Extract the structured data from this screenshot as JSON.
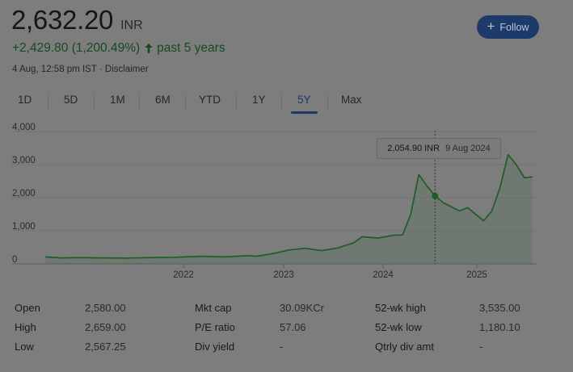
{
  "header": {
    "price": "2,632.20",
    "currency": "INR",
    "change": "+2,429.80 (1,200.49%)",
    "period": "past 5 years",
    "timestamp": "4 Aug, 12:58 pm IST",
    "separator": "·",
    "disclaimer": "Disclaimer",
    "follow_label": "Follow"
  },
  "tabs": [
    {
      "label": "1D"
    },
    {
      "label": "5D"
    },
    {
      "label": "1M"
    },
    {
      "label": "6M"
    },
    {
      "label": "YTD"
    },
    {
      "label": "1Y"
    },
    {
      "label": "5Y",
      "active": true
    },
    {
      "label": "Max"
    }
  ],
  "tooltip": {
    "value": "2,054.90 INR",
    "date": "9 Aug 2024"
  },
  "chart_data": {
    "type": "area",
    "x_ticks": [
      "2022",
      "2023",
      "2024",
      "2025"
    ],
    "y_ticks": [
      "0",
      "1,000",
      "2,000",
      "3,000",
      "4,000"
    ],
    "ylim": [
      0,
      4000
    ],
    "line_color": "#1b5e27",
    "series": [
      {
        "points": [
          [
            "2020-08",
            210
          ],
          [
            "2020-10",
            180
          ],
          [
            "2020-12",
            190
          ],
          [
            "2021-03",
            180
          ],
          [
            "2021-06",
            175
          ],
          [
            "2021-09",
            190
          ],
          [
            "2021-12",
            200
          ],
          [
            "2022-03",
            230
          ],
          [
            "2022-06",
            210
          ],
          [
            "2022-09",
            250
          ],
          [
            "2022-10",
            230
          ],
          [
            "2022-12",
            310
          ],
          [
            "2023-02",
            420
          ],
          [
            "2023-04",
            470
          ],
          [
            "2023-06",
            400
          ],
          [
            "2023-08",
            480
          ],
          [
            "2023-10",
            640
          ],
          [
            "2023-11",
            820
          ],
          [
            "2024-01",
            780
          ],
          [
            "2024-03",
            870
          ],
          [
            "2024-04",
            870
          ],
          [
            "2024-05",
            1500
          ],
          [
            "2024-06",
            2700
          ],
          [
            "2024-07",
            2350
          ],
          [
            "2024-08",
            2054.9
          ],
          [
            "2024-09",
            1850
          ],
          [
            "2024-11",
            1600
          ],
          [
            "2024-12",
            1700
          ],
          [
            "2025-02",
            1300
          ],
          [
            "2025-03",
            1600
          ],
          [
            "2025-04",
            2300
          ],
          [
            "2025-05",
            3300
          ],
          [
            "2025-06",
            3000
          ],
          [
            "2025-07",
            2600
          ],
          [
            "2025-08",
            2632.2
          ]
        ]
      }
    ]
  },
  "stats": {
    "col1": [
      {
        "label": "Open",
        "value": "2,580.00"
      },
      {
        "label": "High",
        "value": "2,659.00"
      },
      {
        "label": "Low",
        "value": "2,567.25"
      }
    ],
    "col2": [
      {
        "label": "Mkt cap",
        "value": "30.09KCr"
      },
      {
        "label": "P/E ratio",
        "value": "57.06"
      },
      {
        "label": "Div yield",
        "value": "-"
      }
    ],
    "col3": [
      {
        "label": "52-wk high",
        "value": "3,535.00"
      },
      {
        "label": "52-wk low",
        "value": "1,180.10"
      },
      {
        "label": "Qtrly div amt",
        "value": "-"
      }
    ]
  }
}
